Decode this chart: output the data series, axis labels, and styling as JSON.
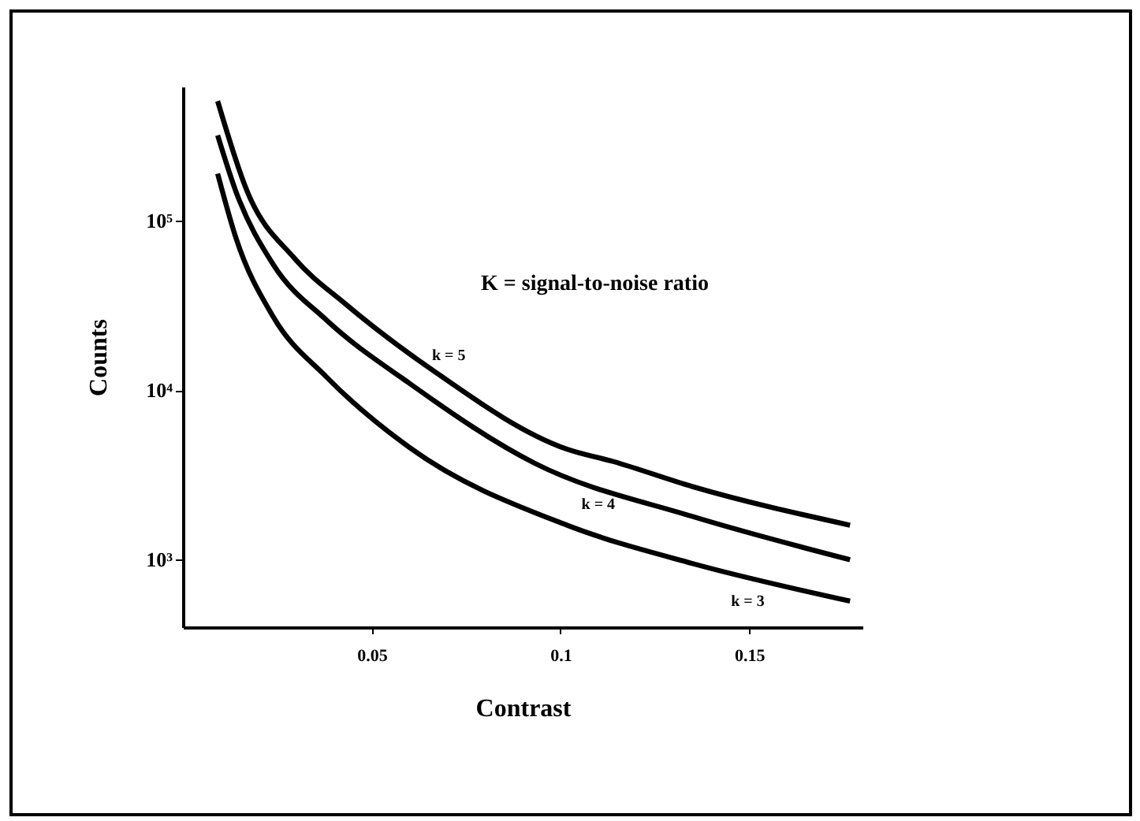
{
  "chart_data": {
    "type": "line",
    "xlabel": "Contrast",
    "ylabel": "Counts",
    "annotations": [
      "K = signal-to-noise ratio"
    ],
    "xlim": [
      0,
      0.18
    ],
    "xticks": [
      0.05,
      0.1,
      0.15
    ],
    "ylim": [
      400,
      620000
    ],
    "yticks": [
      {
        "value": 1000,
        "label": "10³"
      },
      {
        "value": 10000,
        "label": "10⁴"
      },
      {
        "value": 100000,
        "label": "10⁵"
      }
    ],
    "log": "y",
    "grid": false,
    "marker": "none",
    "line_style": "solid",
    "legend": false,
    "series": [
      {
        "name": "k = 5",
        "color": "#000000",
        "x": [
          0.0092,
          0.017,
          0.0296,
          0.0433,
          0.0654,
          0.1017,
          0.114,
          0.135,
          0.1767
        ],
        "values": [
          510000,
          150000,
          60000,
          32000,
          13500,
          4500,
          3800,
          2700,
          1600
        ]
      },
      {
        "name": "k = 4",
        "color": "#000000",
        "x": [
          0.0092,
          0.014,
          0.024,
          0.038,
          0.06,
          0.0933,
          0.135,
          0.1767
        ],
        "values": [
          320000,
          150000,
          55000,
          26000,
          11000,
          3700,
          1800,
          1000
        ]
      },
      {
        "name": "k = 3",
        "color": "#000000",
        "x": [
          0.0092,
          0.014,
          0.024,
          0.038,
          0.06,
          0.1017,
          0.135,
          0.1767
        ],
        "values": [
          190000,
          80000,
          27000,
          12000,
          4600,
          1600,
          950,
          570
        ]
      }
    ]
  }
}
